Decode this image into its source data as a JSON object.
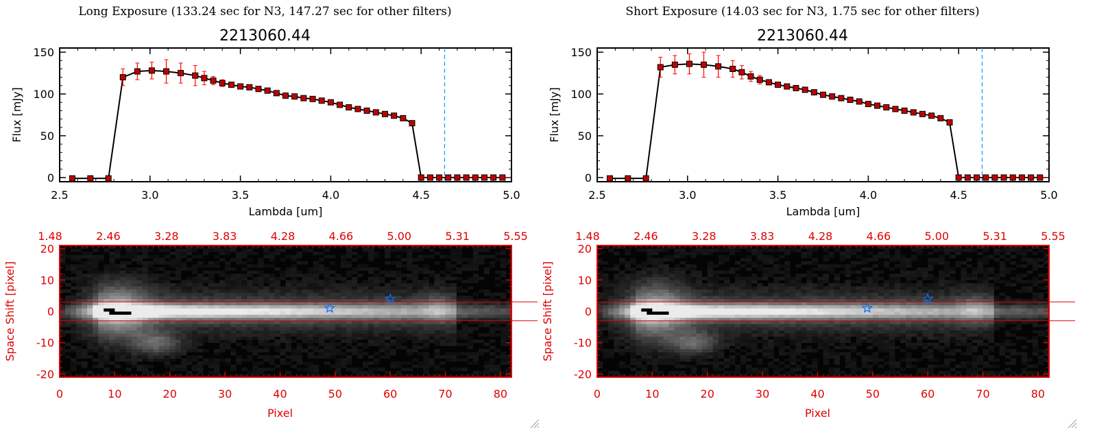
{
  "panels": [
    {
      "title": "Long Exposure (133.24 sec for N3, 147.27 sec for other filters)",
      "subtitle": "2213060.44",
      "error_scale": 1.0,
      "offset": 0
    },
    {
      "title": "Short Exposure (14.03 sec for N3, 1.75 sec for other filters)",
      "subtitle": "2213060.44",
      "error_scale": 0.95,
      "offset": 1
    }
  ],
  "colors": {
    "axis": "#000000",
    "line": "#000000",
    "marker": "#c00000",
    "error": "#ff0000",
    "vline": "#00a0ff",
    "image_axis": "#e00000",
    "aperture": "#e00000",
    "star": "#0070ff"
  },
  "chart_data": [
    {
      "type": "line",
      "title": "2213060.44",
      "xlabel": "Lambda [um]",
      "ylabel": "Flux [mJy]",
      "xlim": [
        2.5,
        5.0
      ],
      "ylim": [
        -5,
        155
      ],
      "xticks": [
        "2.5",
        "3.0",
        "3.5",
        "4.0",
        "4.5",
        "5.0"
      ],
      "yticks": [
        "0",
        "50",
        "100",
        "150"
      ],
      "vline_x": 4.63,
      "x": [
        2.57,
        2.67,
        2.77,
        2.85,
        2.93,
        3.01,
        3.09,
        3.17,
        3.25,
        3.3,
        3.35,
        3.4,
        3.45,
        3.5,
        3.55,
        3.6,
        3.65,
        3.7,
        3.75,
        3.8,
        3.85,
        3.9,
        3.95,
        4.0,
        4.05,
        4.1,
        4.15,
        4.2,
        4.25,
        4.3,
        4.35,
        4.4,
        4.45,
        4.5,
        4.55,
        4.6,
        4.65,
        4.7,
        4.75,
        4.8,
        4.85,
        4.9,
        4.95
      ],
      "series": [
        {
          "name": "Long Exposure",
          "values": [
            -1,
            -1,
            -1,
            120,
            127,
            128,
            127,
            125,
            122,
            119,
            116,
            113,
            111,
            109,
            108,
            106,
            104,
            101,
            98,
            97,
            95,
            94,
            92,
            90,
            87,
            84,
            82,
            80,
            78,
            76,
            74,
            71,
            65,
            0,
            0,
            0,
            0,
            0,
            0,
            0,
            0,
            0,
            0
          ],
          "errors": [
            0,
            0,
            0,
            10,
            10,
            10,
            14,
            12,
            12,
            8,
            5,
            4,
            3,
            2,
            2,
            2,
            2,
            2,
            2,
            2,
            2,
            2,
            2,
            2,
            2,
            2,
            2,
            2,
            2,
            2,
            2,
            2,
            2,
            0,
            0,
            0,
            0,
            0,
            0,
            0,
            0,
            0,
            0
          ]
        },
        {
          "name": "Short Exposure",
          "values": [
            -1,
            -1,
            -1,
            132,
            135,
            136,
            135,
            133,
            130,
            126,
            121,
            117,
            114,
            111,
            109,
            107,
            105,
            102,
            99,
            97,
            95,
            93,
            91,
            88,
            86,
            84,
            82,
            80,
            78,
            76,
            74,
            71,
            66,
            0,
            0,
            0,
            0,
            0,
            0,
            0,
            0,
            0,
            0
          ],
          "errors": [
            0,
            0,
            0,
            12,
            11,
            12,
            15,
            13,
            10,
            8,
            6,
            5,
            3,
            3,
            2,
            2,
            2,
            2,
            2,
            2,
            2,
            2,
            2,
            2,
            2,
            2,
            2,
            2,
            2,
            2,
            2,
            2,
            2,
            0,
            0,
            0,
            0,
            0,
            0,
            0,
            0,
            0,
            0
          ]
        }
      ]
    },
    {
      "type": "heatmap",
      "xlabel": "Pixel",
      "ylabel": "Space Shift [pixel]",
      "xlim": [
        0,
        82
      ],
      "ylim": [
        -21,
        21
      ],
      "xticks": [
        "0",
        "10",
        "20",
        "30",
        "40",
        "50",
        "60",
        "70",
        "80"
      ],
      "yticks": [
        "-20",
        "-10",
        "0",
        "10",
        "20"
      ],
      "top_ticks": [
        "1.48",
        "2.46",
        "3.28",
        "3.83",
        "4.28",
        "4.66",
        "5.00",
        "5.31",
        "5.55"
      ],
      "aperture_y": [
        3,
        -3
      ],
      "stars": [
        [
          49,
          1
        ],
        [
          60,
          4
        ]
      ]
    }
  ]
}
